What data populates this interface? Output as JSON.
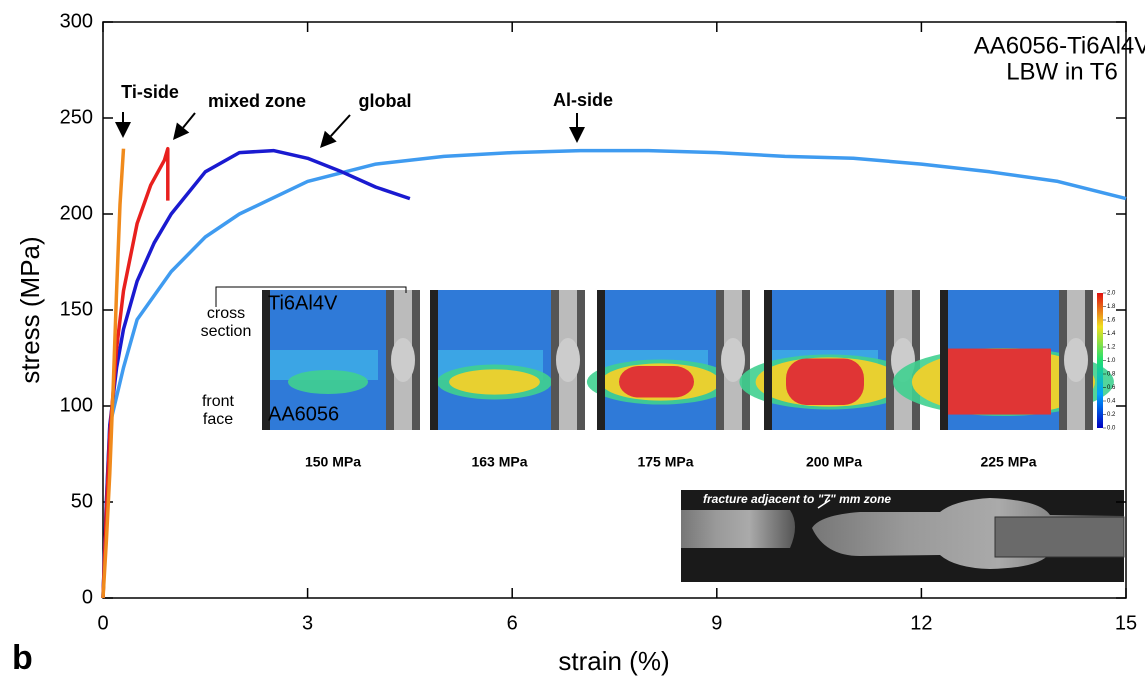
{
  "chart_data": {
    "type": "line",
    "title": "AA6056-Ti6Al4V",
    "subtitle": "LBW in T6",
    "x_label": "strain (%)",
    "y_label": "stress (MPa)",
    "xlim": [
      0,
      15
    ],
    "ylim": [
      0,
      300
    ],
    "xticks": [
      0,
      3,
      6,
      9,
      12,
      15
    ],
    "yticks": [
      0,
      50,
      100,
      150,
      200,
      250,
      300
    ],
    "series": [
      {
        "name": "Ti-side",
        "color": "#f08a1c",
        "x": [
          0,
          0.05,
          0.1,
          0.15,
          0.2,
          0.25,
          0.3
        ],
        "values": [
          0,
          30,
          65,
          110,
          160,
          205,
          234
        ]
      },
      {
        "name": "mixed zone",
        "color": "#e8201e",
        "x": [
          0,
          0.05,
          0.1,
          0.2,
          0.3,
          0.5,
          0.7,
          0.9,
          0.95,
          0.95
        ],
        "values": [
          0,
          45,
          85,
          130,
          160,
          195,
          215,
          228,
          234,
          207
        ]
      },
      {
        "name": "global",
        "color": "#1a1ad0",
        "x": [
          0,
          0.05,
          0.1,
          0.2,
          0.3,
          0.5,
          0.75,
          1,
          1.5,
          2,
          2.5,
          3,
          3.5,
          4,
          4.5
        ],
        "values": [
          0,
          50,
          90,
          120,
          140,
          165,
          185,
          200,
          222,
          232,
          233,
          229,
          222,
          214,
          208
        ]
      },
      {
        "name": "Al-side",
        "color": "#3f9bf0",
        "x": [
          0,
          0.05,
          0.1,
          0.3,
          0.5,
          1,
          1.5,
          2,
          3,
          4,
          5,
          6,
          7,
          8,
          9,
          10,
          11,
          12,
          13,
          14,
          15
        ],
        "values": [
          0,
          50,
          90,
          120,
          145,
          170,
          188,
          200,
          217,
          226,
          230,
          232,
          233,
          233,
          232,
          230,
          229,
          226,
          222,
          217,
          208
        ]
      }
    ],
    "inset_labels": [
      "150 MPa",
      "163 MPa",
      "175 MPa",
      "200 MPa",
      "225 MPa"
    ],
    "inset_text": {
      "top_material": "Ti6Al4V",
      "bottom_material": "AA6056",
      "cross_section": [
        "cross",
        "section"
      ],
      "front_face": [
        "front",
        "face"
      ]
    },
    "colorbar_ticks": [
      {
        "value": 0,
        "label": "0.0"
      },
      {
        "value": 0.2,
        "label": "0.2"
      },
      {
        "value": 0.4,
        "label": "0.4"
      },
      {
        "value": 0.6,
        "label": "0.6"
      },
      {
        "value": 0.8,
        "label": "0.8"
      },
      {
        "value": 1.0,
        "label": "1.0"
      },
      {
        "value": 1.2,
        "label": "1.2"
      },
      {
        "value": 1.4,
        "label": "1.4"
      },
      {
        "value": 1.6,
        "label": "1.6"
      },
      {
        "value": 1.8,
        "label": "1.8"
      },
      {
        "value": 2.0,
        "label": "2.0"
      }
    ],
    "colorbar_lim": [
      0,
      2.0
    ],
    "fracture_caption": "fracture adjacent to \"7\" mm zone",
    "figure_label": "b"
  }
}
